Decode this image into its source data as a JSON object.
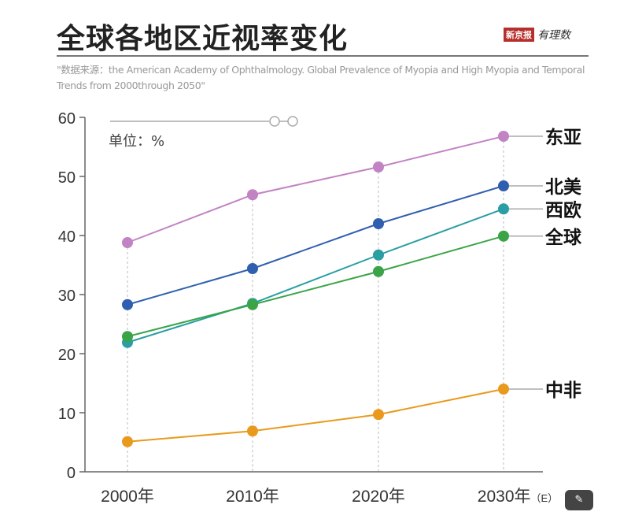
{
  "header": {
    "title": "全球各地区近视率变化",
    "logo_badge": "新京报",
    "logo_script": "有理数"
  },
  "source": "\"数据来源：the American Academy of Ophthalmology. Global Prevalence of Myopia and High Myopia and Temporal Trends from 2000through 2050\"",
  "chart_data": {
    "type": "line",
    "title": "全球各地区近视率变化",
    "unit_label": "单位：%",
    "categories": [
      "2000年",
      "2010年",
      "2020年",
      "2030年"
    ],
    "category_suffix": "（E）",
    "ylim": [
      0,
      60
    ],
    "yticks": [
      0,
      10,
      20,
      30,
      40,
      50,
      60
    ],
    "grid": "vertical dashed",
    "legend": "right (direct labels)",
    "series": [
      {
        "name": "东亚",
        "color": "#c183c3",
        "values": [
          38.8,
          46.9,
          51.6,
          56.8
        ]
      },
      {
        "name": "北美",
        "color": "#2f5fae",
        "values": [
          28.3,
          34.4,
          42.0,
          48.4
        ]
      },
      {
        "name": "西欧",
        "color": "#2a9ea3",
        "values": [
          21.9,
          28.5,
          36.7,
          44.5
        ]
      },
      {
        "name": "全球",
        "color": "#3aa447",
        "values": [
          22.9,
          28.3,
          33.9,
          39.9
        ]
      },
      {
        "name": "中非",
        "color": "#e99a1c",
        "values": [
          5.1,
          6.9,
          9.7,
          14.0
        ]
      }
    ]
  },
  "zoom_button_icon": "magic-wand-icon"
}
